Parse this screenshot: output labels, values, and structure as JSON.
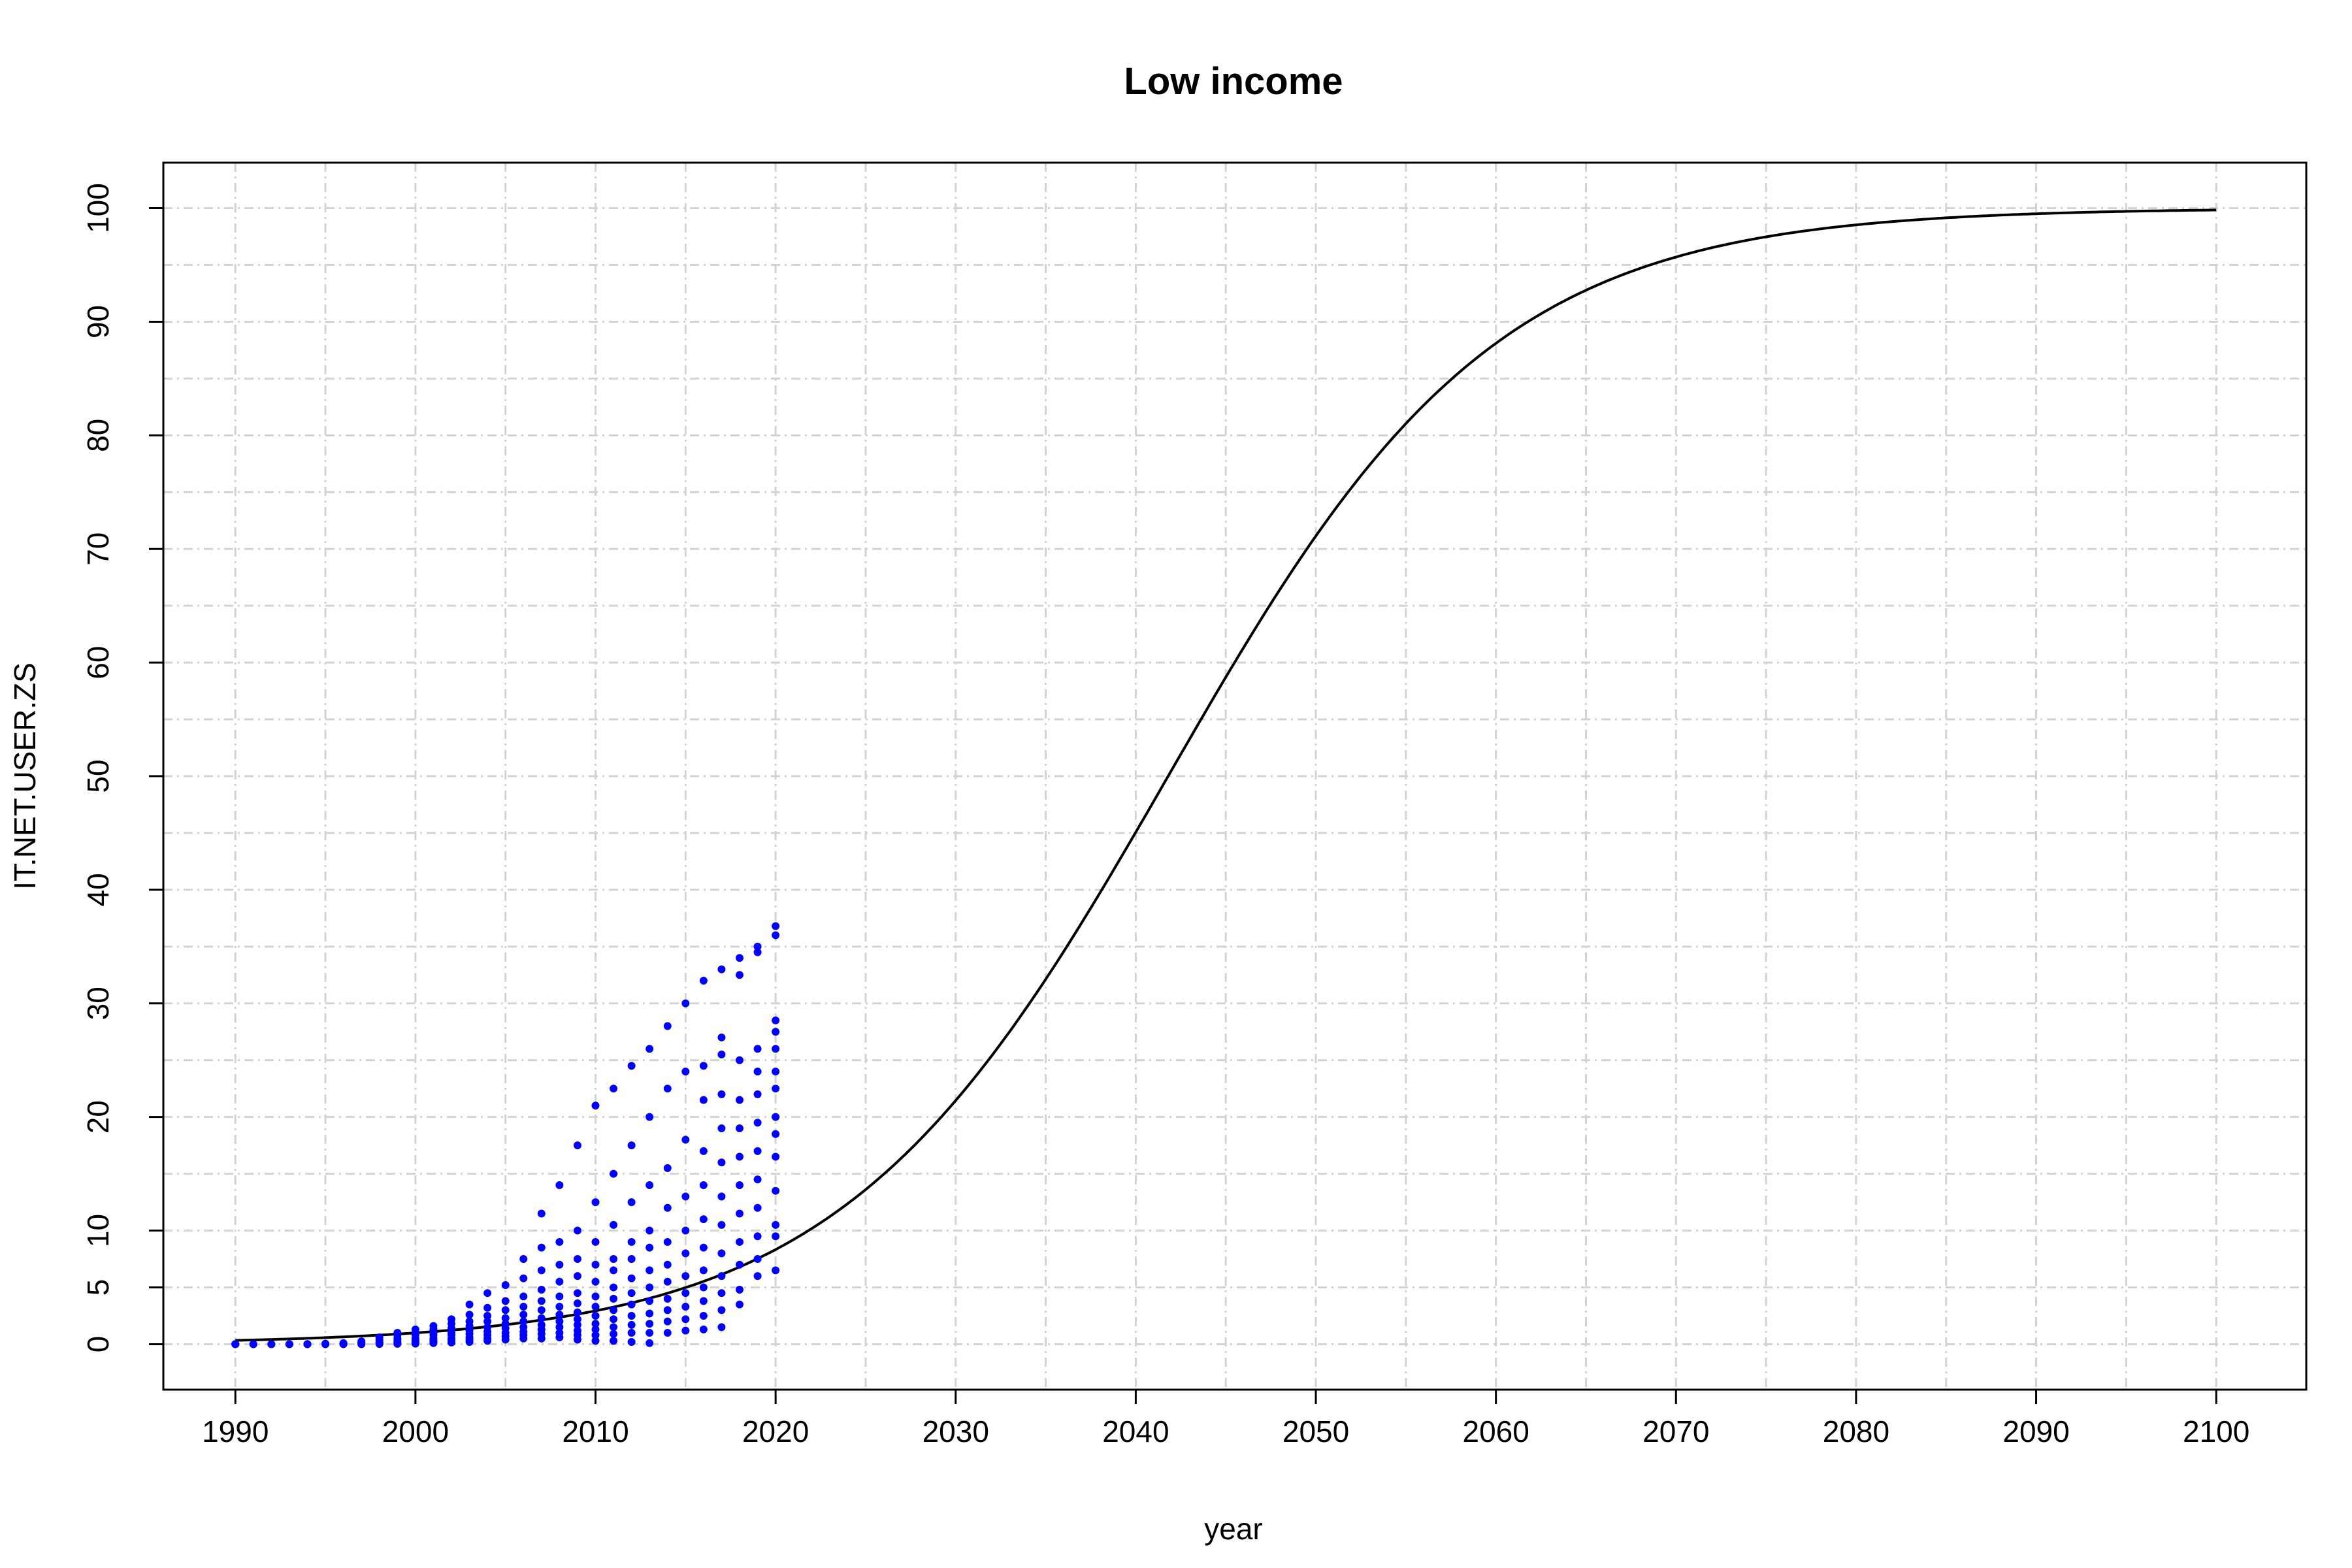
{
  "chart_data": {
    "type": "scatter",
    "title": "Low income",
    "xlabel": "year",
    "ylabel": "IT.NET.USER.ZS",
    "xlim": [
      1986,
      2105
    ],
    "ylim": [
      -4,
      104
    ],
    "x_ticks": [
      1990,
      2000,
      2010,
      2020,
      2030,
      2040,
      2050,
      2060,
      2070,
      2080,
      2090,
      2100
    ],
    "y_ticks": [
      0,
      5,
      10,
      20,
      30,
      40,
      50,
      60,
      70,
      80,
      90,
      100
    ],
    "x_grid": [
      1990,
      1995,
      2000,
      2005,
      2010,
      2015,
      2020,
      2025,
      2030,
      2035,
      2040,
      2045,
      2050,
      2055,
      2060,
      2065,
      2070,
      2075,
      2080,
      2085,
      2090,
      2095,
      2100
    ],
    "y_grid": [
      0,
      5,
      10,
      15,
      20,
      25,
      30,
      35,
      40,
      45,
      50,
      55,
      60,
      65,
      70,
      75,
      80,
      85,
      90,
      95,
      100
    ],
    "grid": true,
    "point_color": "#0000ff",
    "line_color": "#000000",
    "fitted_curve": {
      "model": "logistic",
      "asymptote": 100,
      "midpoint": 2041.8,
      "rate": 0.11,
      "x_range": [
        1990,
        2100
      ]
    },
    "points": [
      {
        "x": 1990,
        "y": [
          0,
          0,
          0,
          0.01
        ]
      },
      {
        "x": 1991,
        "y": [
          0,
          0,
          0
        ]
      },
      {
        "x": 1992,
        "y": [
          0,
          0,
          0
        ]
      },
      {
        "x": 1993,
        "y": [
          0,
          0,
          0
        ]
      },
      {
        "x": 1994,
        "y": [
          0,
          0,
          0.01
        ]
      },
      {
        "x": 1995,
        "y": [
          0,
          0,
          0.02,
          0.05
        ]
      },
      {
        "x": 1996,
        "y": [
          0,
          0.02,
          0.05,
          0.1
        ]
      },
      {
        "x": 1997,
        "y": [
          0,
          0.03,
          0.08,
          0.15,
          0.25
        ]
      },
      {
        "x": 1998,
        "y": [
          0.02,
          0.05,
          0.1,
          0.2,
          0.4,
          0.6
        ]
      },
      {
        "x": 1999,
        "y": [
          0.03,
          0.08,
          0.15,
          0.3,
          0.5,
          0.8,
          1.0
        ]
      },
      {
        "x": 2000,
        "y": [
          0.05,
          0.1,
          0.2,
          0.3,
          0.5,
          0.8,
          1.0,
          1.3
        ]
      },
      {
        "x": 2001,
        "y": [
          0.1,
          0.2,
          0.3,
          0.5,
          0.8,
          1.0,
          1.3,
          1.6
        ]
      },
      {
        "x": 2002,
        "y": [
          0.15,
          0.3,
          0.5,
          0.8,
          1.0,
          1.4,
          1.8,
          2.2
        ]
      },
      {
        "x": 2003,
        "y": [
          0.2,
          0.4,
          0.6,
          0.9,
          1.2,
          1.6,
          2.0,
          2.6,
          3.5
        ]
      },
      {
        "x": 2004,
        "y": [
          0.3,
          0.5,
          0.8,
          1.1,
          1.5,
          2.0,
          2.5,
          3.2,
          4.5
        ]
      },
      {
        "x": 2005,
        "y": [
          0.4,
          0.7,
          1.0,
          1.4,
          1.8,
          2.3,
          3.0,
          3.8,
          5.2
        ]
      },
      {
        "x": 2006,
        "y": [
          0.5,
          0.8,
          1.1,
          1.5,
          2.0,
          2.6,
          3.3,
          4.2,
          5.8,
          7.5
        ]
      },
      {
        "x": 2007,
        "y": [
          0.5,
          0.9,
          1.3,
          1.7,
          2.3,
          3.0,
          3.8,
          4.8,
          6.5,
          8.5,
          11.5
        ]
      },
      {
        "x": 2008,
        "y": [
          0.6,
          1.0,
          1.5,
          2.0,
          2.6,
          3.3,
          4.2,
          5.5,
          7.0,
          9.0,
          14.0
        ]
      },
      {
        "x": 2009,
        "y": [
          0.4,
          0.8,
          1.2,
          1.7,
          2.2,
          2.8,
          3.6,
          4.5,
          6.0,
          7.5,
          10.0,
          17.5
        ]
      },
      {
        "x": 2010,
        "y": [
          0.3,
          0.8,
          1.3,
          1.8,
          2.5,
          3.3,
          4.2,
          5.5,
          7.0,
          9.0,
          12.5,
          21.0
        ]
      },
      {
        "x": 2011,
        "y": [
          0.3,
          0.9,
          1.5,
          2.2,
          3.0,
          4.0,
          5.0,
          6.5,
          7.5,
          10.5,
          15.0,
          22.5
        ]
      },
      {
        "x": 2012,
        "y": [
          0.2,
          1.0,
          1.7,
          2.5,
          3.5,
          4.5,
          5.8,
          7.5,
          9.0,
          12.5,
          17.5,
          24.5
        ]
      },
      {
        "x": 2013,
        "y": [
          0.1,
          1.0,
          1.8,
          2.7,
          3.8,
          5.0,
          6.5,
          8.5,
          10.0,
          14.0,
          20.0,
          26.0
        ]
      },
      {
        "x": 2014,
        "y": [
          1.0,
          2.0,
          3.0,
          4.0,
          5.5,
          7.0,
          9.0,
          12.0,
          15.5,
          22.5,
          28.0
        ]
      },
      {
        "x": 2015,
        "y": [
          1.2,
          2.2,
          3.3,
          4.5,
          6.0,
          8.0,
          10.0,
          13.0,
          18.0,
          24.0,
          30.0
        ]
      },
      {
        "x": 2016,
        "y": [
          1.3,
          2.5,
          3.8,
          5.0,
          6.5,
          8.5,
          11.0,
          14.0,
          17.0,
          21.5,
          24.5,
          32.0
        ]
      },
      {
        "x": 2017,
        "y": [
          1.5,
          3.0,
          4.5,
          6.0,
          8.0,
          10.5,
          13.0,
          16.0,
          19.0,
          22.0,
          25.5,
          27.0,
          33.0
        ]
      },
      {
        "x": 2018,
        "y": [
          3.5,
          4.8,
          7.0,
          9.0,
          11.5,
          14.0,
          16.5,
          19.0,
          21.5,
          25.0,
          32.5,
          34.0
        ]
      },
      {
        "x": 2019,
        "y": [
          6.0,
          7.5,
          9.5,
          12.0,
          14.5,
          17.0,
          19.5,
          22.0,
          24.0,
          26.0,
          34.5,
          35.0
        ]
      },
      {
        "x": 2020,
        "y": [
          6.5,
          9.5,
          10.5,
          13.5,
          16.5,
          18.5,
          20.0,
          22.5,
          24.0,
          26.0,
          27.5,
          28.5,
          36.0,
          36.8
        ]
      }
    ]
  }
}
